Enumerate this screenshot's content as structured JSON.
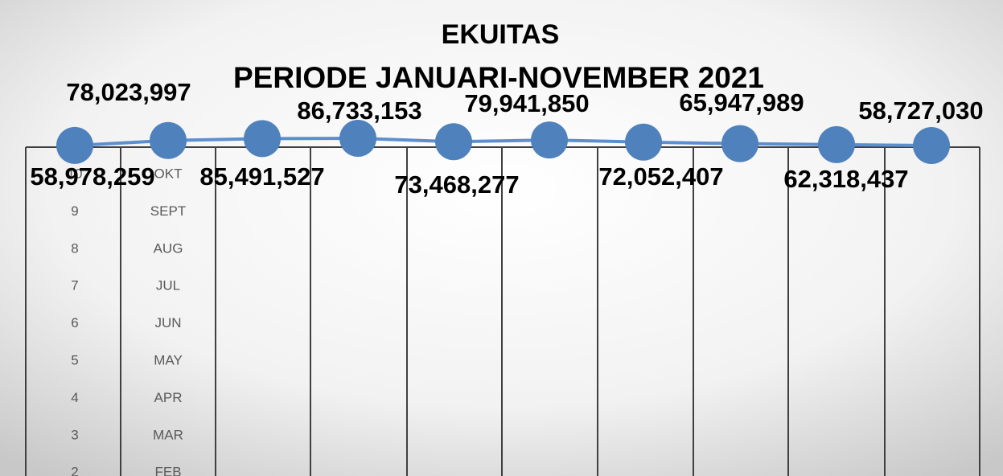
{
  "chart_data": {
    "type": "line",
    "title": "EKUITAS",
    "subtitle": "PERIODE JANUARI-NOVEMBER 2021",
    "values": [
      58978259,
      78023997,
      85491527,
      86733153,
      73468277,
      79941850,
      72052407,
      65947989,
      62318437,
      58727030
    ],
    "value_labels": [
      "58,978,259",
      "78,023,997",
      "85,491,527",
      "86,733,153",
      "73,468,277",
      "79,941,850",
      "72,052,407",
      "65,947,989",
      "62,318,437",
      "58,727,030"
    ],
    "color": "#4f81bd"
  },
  "table": {
    "rows": [
      [
        10,
        "OKT"
      ],
      [
        9,
        "SEPT"
      ],
      [
        8,
        "AUG"
      ],
      [
        7,
        "JUL"
      ],
      [
        6,
        "JUN"
      ],
      [
        5,
        "MAY"
      ],
      [
        4,
        "APR"
      ],
      [
        3,
        "MAR"
      ],
      [
        2,
        "FEB"
      ]
    ]
  }
}
